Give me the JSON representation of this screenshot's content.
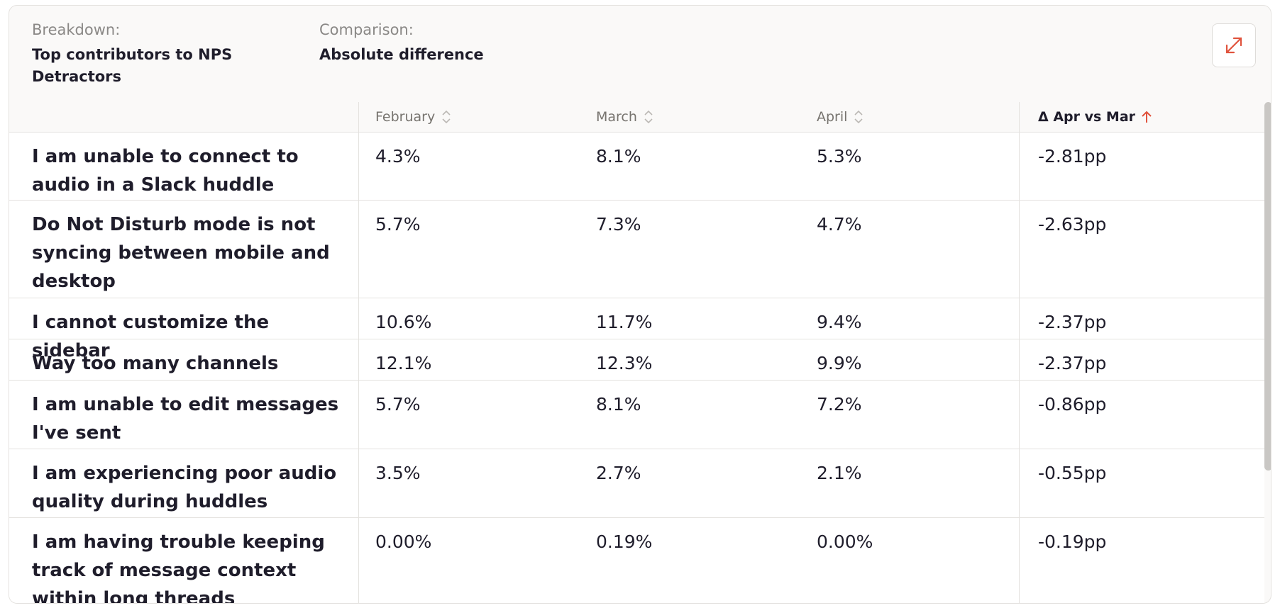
{
  "header": {
    "breakdown": {
      "label": "Breakdown:",
      "value": "Top contributors to NPS Detractors"
    },
    "comparison": {
      "label": "Comparison:",
      "value": "Absolute difference"
    }
  },
  "table": {
    "columns": [
      "February",
      "March",
      "April",
      "Δ Apr vs Mar"
    ],
    "rows": [
      [
        "I am unable to connect to audio in a Slack huddle",
        "4.3%",
        "8.1%",
        "5.3%",
        "-2.81pp"
      ],
      [
        "Do Not Disturb mode is not syncing between mobile and desktop",
        "5.7%",
        "7.3%",
        "4.7%",
        "-2.63pp"
      ],
      [
        "I cannot customize the sidebar",
        "10.6%",
        "11.7%",
        "9.4%",
        "-2.37pp"
      ],
      [
        "Way too many channels",
        "12.1%",
        "12.3%",
        "9.9%",
        "-2.37pp"
      ],
      [
        "I am unable to edit messages I've sent",
        "5.7%",
        "8.1%",
        "7.2%",
        "-0.86pp"
      ],
      [
        "I am experiencing poor audio quality during huddles",
        "3.5%",
        "2.7%",
        "2.1%",
        "-0.55pp"
      ],
      [
        "I am having trouble keeping track of message context within long threads",
        "0.00%",
        "0.19%",
        "0.00%",
        "-0.19pp"
      ]
    ]
  }
}
